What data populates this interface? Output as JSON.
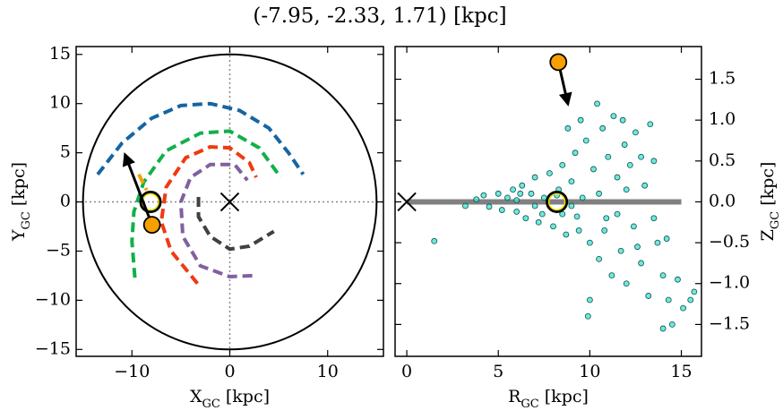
{
  "title": "(-7.95, -2.33, 1.71) [kpc]",
  "chart_data": [
    {
      "type": "line",
      "xlabel": {
        "main": "X",
        "sub": "GC",
        "unit": " [kpc]"
      },
      "ylabel": {
        "main": "Y",
        "sub": "GC",
        "unit": " [kpc]"
      },
      "xlim": [
        -15.7,
        15.7
      ],
      "ylim": [
        -15.7,
        15.8
      ],
      "xticks": [
        {
          "value": -10,
          "label": "−10"
        },
        0,
        10
      ],
      "yticks": [
        {
          "value": -15,
          "label": "−15"
        },
        {
          "value": -10,
          "label": "−10"
        },
        {
          "value": -5,
          "label": "−5"
        },
        0,
        5,
        10,
        15
      ],
      "series": [
        {
          "color": "#1565a3",
          "x": [
            -13.5,
            -11,
            -8,
            -5,
            -2,
            1,
            4,
            6,
            7.5
          ],
          "values": [
            2.8,
            6,
            8.5,
            9.8,
            10,
            9.3,
            7.5,
            5,
            2.8
          ]
        },
        {
          "color": "#12b04a",
          "x": [
            -9.7,
            -10,
            -9.8,
            -8.8,
            -6.5,
            -3,
            0,
            3,
            5.2
          ],
          "values": [
            -7.7,
            -4,
            -1,
            2,
            5.2,
            7,
            7.2,
            5.5,
            2.5
          ]
        },
        {
          "color": "#f5a000",
          "x": [
            -9.3,
            -8.5
          ],
          "values": [
            2.8,
            1.2
          ]
        },
        {
          "color": "#f03a10",
          "x": [
            -3.3,
            -6,
            -7,
            -6.5,
            -4.5,
            -2,
            0,
            2,
            2.7
          ],
          "values": [
            -8.3,
            -5,
            -2,
            1.5,
            4.5,
            5.6,
            5.5,
            4,
            2.5
          ]
        },
        {
          "color": "#8060a0",
          "x": [
            2.3,
            0,
            -3,
            -4.8,
            -5,
            -4,
            -2,
            0.5,
            1.8
          ],
          "values": [
            -7.5,
            -7.6,
            -6.5,
            -3.5,
            0,
            2.5,
            3.8,
            3.8,
            2.2
          ]
        },
        {
          "color": "#404040",
          "x": [
            -3.2,
            -3.2,
            -2,
            0,
            2,
            4.5
          ],
          "values": [
            0.5,
            -1.5,
            -3.5,
            -4.8,
            -4.5,
            -3
          ]
        }
      ],
      "circle_radius": 15,
      "gc": {
        "x": 0,
        "y": 0
      },
      "sun": {
        "x": -8.1,
        "y": 0
      },
      "star": {
        "x": -7.95,
        "y": -2.33,
        "color": "#f5a000"
      },
      "arrow_to": {
        "x": -10.7,
        "y": 4.8
      }
    },
    {
      "type": "scatter",
      "xlabel": {
        "main": "R",
        "sub": "GC",
        "unit": " [kpc]"
      },
      "ylabel": {
        "main": "Z",
        "sub": "GC",
        "unit": " [kpc]"
      },
      "xlim": [
        -0.64,
        16.1
      ],
      "ylim": [
        -1.89,
        1.9
      ],
      "xticks": [
        0,
        5,
        10,
        15
      ],
      "yticks": [
        {
          "value": -1.5,
          "label": "−1.5"
        },
        {
          "value": -1.0,
          "label": "−1.0"
        },
        {
          "value": -0.5,
          "label": "−0.5"
        },
        {
          "value": 0,
          "label": "0.0"
        },
        0.5,
        {
          "value": 1.0,
          "label": "1.0"
        },
        1.5
      ],
      "color": "#40e0d0",
      "x": [
        1.5,
        3.2,
        3.8,
        4.2,
        4.5,
        5.0,
        5.2,
        5.5,
        5.8,
        6.0,
        6.3,
        6.5,
        6.8,
        7.0,
        7.2,
        7.5,
        7.8,
        8.0,
        8.3,
        8.5,
        8.7,
        9.0,
        9.2,
        9.4,
        9.6,
        9.8,
        10.0,
        10.2,
        10.4,
        10.5,
        10.7,
        10.9,
        11.0,
        11.2,
        11.3,
        11.5,
        11.7,
        11.9,
        12.0,
        12.2,
        12.4,
        12.5,
        12.8,
        13.0,
        13.2,
        13.5,
        13.7,
        14.0,
        14.3,
        14.5,
        14.8,
        15.1,
        15.5,
        15.7,
        14.0,
        10.0,
        9.9,
        8.5,
        9.0,
        7.0,
        6.0,
        10.5,
        11.5,
        12.0,
        13.5,
        8.8,
        9.5,
        11.8,
        12.8,
        13.3,
        14.2,
        6.2,
        7.4,
        8.2,
        9.3,
        10.8,
        12.6
      ],
      "values": [
        -0.48,
        -0.05,
        0.03,
        0.08,
        -0.06,
        0.1,
        -0.1,
        0.05,
        0.15,
        -0.12,
        0.2,
        -0.2,
        0.1,
        0.3,
        -0.25,
        0.05,
        0.35,
        -0.3,
        0.15,
        0.45,
        -0.4,
        0.25,
        0.6,
        -0.35,
        0.05,
        0.75,
        -0.5,
        0.4,
        1.2,
        -0.7,
        0.9,
        -0.2,
        0.55,
        -0.9,
        1.05,
        0.3,
        -0.6,
        0.7,
        -1.0,
        0.45,
        -0.3,
        0.85,
        -0.75,
        0.2,
        -1.15,
        0.5,
        -0.5,
        -0.9,
        -1.2,
        -1.5,
        -0.95,
        -1.3,
        -1.2,
        -1.1,
        -1.55,
        -1.2,
        -1.4,
        -0.15,
        -0.05,
        -0.05,
        0.02,
        0.1,
        -0.15,
        0.15,
        -0.2,
        0.9,
        1.0,
        1.0,
        0.55,
        0.95,
        -0.45,
        0.1,
        -0.15,
        0.08,
        -0.18,
        -0.35,
        -0.55
      ],
      "plane": {
        "color": "#808080",
        "x": [
          0,
          15
        ],
        "values": [
          0,
          0
        ]
      },
      "gc": {
        "x": 0,
        "y": 0
      },
      "sun": {
        "x": 8.2,
        "y": 0
      },
      "star": {
        "x": 8.28,
        "y": 1.71,
        "color": "#f5a000"
      },
      "arrow_to": {
        "x": 8.8,
        "y": 1.2
      }
    }
  ]
}
